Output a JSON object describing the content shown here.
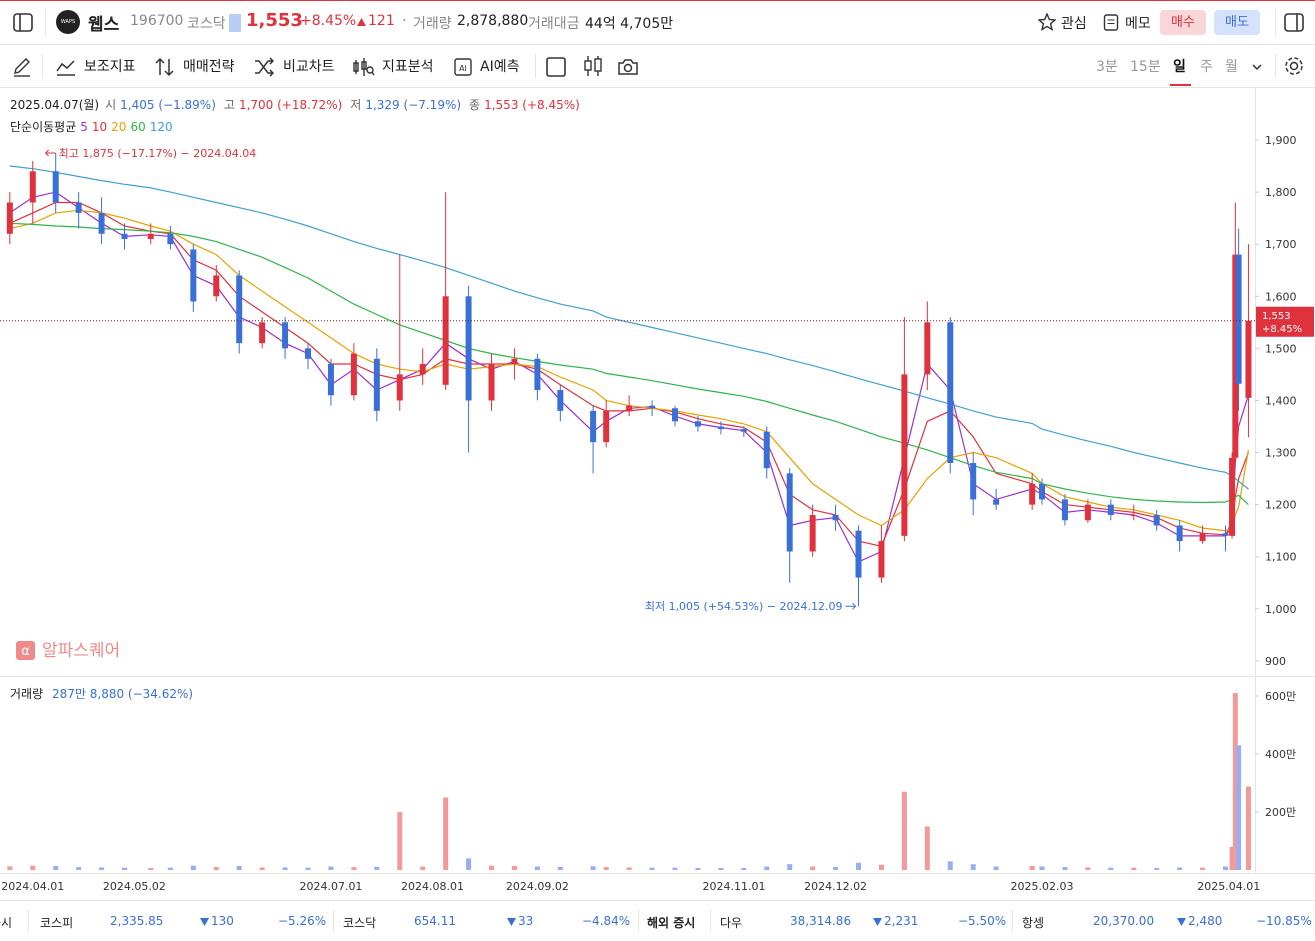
{
  "header": {
    "logo": "WAPS",
    "name": "웹스",
    "code": "196700",
    "market": "코스닥",
    "price": "1,553",
    "change": "+8.45%",
    "diff": "121",
    "volume_label": "거래량",
    "volume": "2,878,880",
    "amount_label": "거래대금",
    "amount": "44억 4,705만",
    "watch": "관심",
    "memo": "메모",
    "buy": "매수",
    "sell": "매도"
  },
  "toolbar": {
    "items": [
      "보조지표",
      "매매전략",
      "비교차트",
      "지표분석",
      "AI예측"
    ],
    "periods": [
      "3분",
      "15분",
      "일",
      "주",
      "월"
    ]
  },
  "info": {
    "date": "2025.04.07(월)",
    "open_label": "시",
    "open": "1,405 (−1.89%)",
    "high_label": "고",
    "high": "1,700 (+18.72%)",
    "low_label": "저",
    "low": "1,329 (−7.19%)",
    "close_label": "종",
    "close": "1,553 (+8.45%)",
    "ma_label": "단순이동평균"
  },
  "watermark": {
    "icon": "α",
    "text": "알파스퀘어"
  },
  "chart_data": [
    {
      "type": "candlestick",
      "x": [
        "2024.03.25",
        "2024.04.01",
        "2024.04.08",
        "2024.04.15",
        "2024.04.22",
        "2024.04.29",
        "2024.05.07",
        "2024.05.13",
        "2024.05.20",
        "2024.05.27",
        "2024.06.03",
        "2024.06.10",
        "2024.06.17",
        "2024.06.24",
        "2024.07.01",
        "2024.07.08",
        "2024.07.15",
        "2024.07.22",
        "2024.07.29",
        "2024.08.05",
        "2024.08.12",
        "2024.08.19",
        "2024.08.26",
        "2024.09.02",
        "2024.09.09",
        "2024.09.19",
        "2024.09.23",
        "2024.09.30",
        "2024.10.07",
        "2024.10.14",
        "2024.10.21",
        "2024.10.28",
        "2024.11.04",
        "2024.11.11",
        "2024.11.18",
        "2024.11.25",
        "2024.12.02",
        "2024.12.09",
        "2024.12.16",
        "2024.12.23",
        "2024.12.30",
        "2025.01.06",
        "2025.01.13",
        "2025.01.20",
        "2025.01.31",
        "2025.02.03",
        "2025.02.10",
        "2025.02.17",
        "2025.02.24",
        "2025.03.03",
        "2025.03.10",
        "2025.03.17",
        "2025.03.24",
        "2025.03.31",
        "2025.04.02",
        "2025.04.03",
        "2025.04.04",
        "2025.04.07"
      ],
      "open": [
        1720,
        1780,
        1840,
        1780,
        1760,
        1720,
        1710,
        1720,
        1690,
        1600,
        1640,
        1510,
        1550,
        1500,
        1470,
        1410,
        1480,
        1400,
        1450,
        1430,
        1600,
        1400,
        1470,
        1480,
        1420,
        1380,
        1320,
        1380,
        1390,
        1385,
        1360,
        1350,
        1345,
        1340,
        1260,
        1110,
        1180,
        1150,
        1060,
        1140,
        1450,
        1550,
        1280,
        1210,
        1200,
        1240,
        1210,
        1170,
        1200,
        1180,
        1180,
        1160,
        1130,
        1145,
        1140,
        1290,
        1680,
        1405
      ],
      "high": [
        1800,
        1860,
        1875,
        1800,
        1790,
        1740,
        1740,
        1735,
        1700,
        1660,
        1650,
        1560,
        1560,
        1510,
        1480,
        1510,
        1500,
        1680,
        1500,
        1800,
        1620,
        1490,
        1500,
        1490,
        1430,
        1390,
        1400,
        1410,
        1400,
        1390,
        1370,
        1360,
        1350,
        1350,
        1270,
        1200,
        1200,
        1160,
        1160,
        1560,
        1590,
        1560,
        1300,
        1230,
        1260,
        1250,
        1220,
        1210,
        1210,
        1200,
        1190,
        1170,
        1160,
        1160,
        1300,
        1780,
        1730,
        1700
      ],
      "low": [
        1700,
        1740,
        1760,
        1730,
        1700,
        1690,
        1700,
        1690,
        1570,
        1590,
        1490,
        1500,
        1480,
        1460,
        1390,
        1400,
        1360,
        1380,
        1430,
        1420,
        1300,
        1380,
        1440,
        1400,
        1360,
        1260,
        1310,
        1370,
        1370,
        1350,
        1340,
        1335,
        1330,
        1250,
        1050,
        1100,
        1150,
        1005,
        1050,
        1130,
        1420,
        1260,
        1180,
        1190,
        1190,
        1200,
        1160,
        1165,
        1170,
        1170,
        1150,
        1110,
        1125,
        1110,
        1135,
        1280,
        1380,
        1329
      ],
      "close": [
        1780,
        1840,
        1780,
        1760,
        1720,
        1710,
        1720,
        1700,
        1590,
        1640,
        1510,
        1550,
        1500,
        1480,
        1410,
        1490,
        1380,
        1450,
        1470,
        1600,
        1400,
        1470,
        1480,
        1420,
        1380,
        1320,
        1380,
        1390,
        1385,
        1360,
        1350,
        1345,
        1340,
        1270,
        1110,
        1180,
        1170,
        1060,
        1130,
        1450,
        1550,
        1280,
        1210,
        1200,
        1240,
        1210,
        1170,
        1200,
        1180,
        1180,
        1160,
        1130,
        1145,
        1140,
        1290,
        1680,
        1432,
        1553
      ],
      "up_color": "#e0323c",
      "down_color": "#3b6fd8",
      "series": [
        {
          "name": "5",
          "color": "#9b2fd3",
          "values": [
            1760,
            1790,
            1800,
            1770,
            1740,
            1715,
            1718,
            1715,
            1640,
            1620,
            1560,
            1540,
            1510,
            1490,
            1430,
            1460,
            1420,
            1440,
            1460,
            1510,
            1480,
            1460,
            1475,
            1450,
            1400,
            1340,
            1360,
            1385,
            1388,
            1370,
            1355,
            1348,
            1342,
            1300,
            1160,
            1170,
            1175,
            1090,
            1110,
            1290,
            1470,
            1420,
            1240,
            1210,
            1230,
            1220,
            1185,
            1190,
            1185,
            1180,
            1165,
            1140,
            1140,
            1140,
            1170,
            1280,
            1350,
            1410
          ]
        },
        {
          "name": "10",
          "color": "#e0323c",
          "values": [
            1740,
            1760,
            1780,
            1780,
            1760,
            1735,
            1725,
            1720,
            1670,
            1650,
            1600,
            1570,
            1540,
            1510,
            1470,
            1470,
            1450,
            1440,
            1450,
            1480,
            1470,
            1470,
            1470,
            1460,
            1430,
            1390,
            1380,
            1380,
            1385,
            1378,
            1365,
            1355,
            1348,
            1320,
            1220,
            1190,
            1180,
            1130,
            1120,
            1230,
            1360,
            1380,
            1330,
            1260,
            1240,
            1225,
            1200,
            1195,
            1190,
            1185,
            1175,
            1155,
            1145,
            1142,
            1155,
            1215,
            1250,
            1300
          ]
        },
        {
          "name": "20",
          "color": "#e8a200",
          "values": [
            1730,
            1740,
            1760,
            1765,
            1760,
            1750,
            1735,
            1725,
            1700,
            1680,
            1640,
            1610,
            1580,
            1550,
            1520,
            1490,
            1470,
            1460,
            1455,
            1470,
            1460,
            1465,
            1470,
            1465,
            1445,
            1420,
            1400,
            1390,
            1385,
            1380,
            1372,
            1365,
            1355,
            1340,
            1290,
            1240,
            1210,
            1180,
            1160,
            1190,
            1250,
            1290,
            1300,
            1290,
            1260,
            1240,
            1215,
            1205,
            1195,
            1190,
            1180,
            1170,
            1155,
            1150,
            1155,
            1180,
            1195,
            1305
          ]
        },
        {
          "name": "60",
          "color": "#2fb44a",
          "values": [
            1740,
            1738,
            1735,
            1733,
            1730,
            1728,
            1725,
            1722,
            1715,
            1705,
            1690,
            1675,
            1655,
            1635,
            1610,
            1585,
            1565,
            1545,
            1530,
            1515,
            1500,
            1490,
            1482,
            1475,
            1468,
            1460,
            1452,
            1445,
            1438,
            1430,
            1422,
            1415,
            1408,
            1398,
            1385,
            1372,
            1360,
            1345,
            1330,
            1318,
            1305,
            1290,
            1275,
            1262,
            1250,
            1240,
            1230,
            1222,
            1215,
            1210,
            1207,
            1205,
            1204,
            1205,
            1210,
            1215,
            1218,
            1200
          ]
        },
        {
          "name": "120",
          "color": "#3fa0d0",
          "values": [
            1850,
            1845,
            1838,
            1830,
            1822,
            1815,
            1808,
            1800,
            1790,
            1780,
            1770,
            1760,
            1748,
            1735,
            1720,
            1705,
            1692,
            1680,
            1668,
            1655,
            1640,
            1625,
            1610,
            1597,
            1585,
            1572,
            1560,
            1550,
            1540,
            1530,
            1520,
            1510,
            1500,
            1490,
            1478,
            1467,
            1455,
            1442,
            1430,
            1418,
            1405,
            1393,
            1380,
            1368,
            1356,
            1345,
            1333,
            1322,
            1312,
            1300,
            1290,
            1280,
            1270,
            1262,
            1255,
            1250,
            1245,
            1230
          ]
        }
      ],
      "xlim": [
        "2024.03.22",
        "2025.04.09"
      ],
      "ylim": [
        871,
        1996
      ],
      "yticks": [
        900,
        {
          "value": 1000,
          "label": "1,000"
        },
        {
          "value": 1100,
          "label": "1,100"
        },
        {
          "value": 1200,
          "label": "1,200"
        },
        {
          "value": 1300,
          "label": "1,300"
        },
        {
          "value": 1400,
          "label": "1,400"
        },
        {
          "value": 1500,
          "label": "1,500"
        },
        {
          "value": 1600,
          "label": "1,600"
        },
        {
          "value": 1700,
          "label": "1,700"
        },
        {
          "value": 1800,
          "label": "1,800"
        },
        {
          "value": 1900,
          "label": "1,900"
        }
      ],
      "last_price": {
        "value": 1553,
        "label": "1,553",
        "change": "+8.45%",
        "color": "#e0323c"
      },
      "high_mark": {
        "value": 1875,
        "x": "2024.04.04",
        "label": "최고 1,875 (−17.17%) − 2024.04.04",
        "color": "#e0323c"
      },
      "low_mark": {
        "value": 1005,
        "x": "2024.12.09",
        "label": "최저 1,005 (+54.53%) − 2024.12.09",
        "color": "#3b6fd8"
      },
      "grid": false
    },
    {
      "type": "bar",
      "title": "거래량",
      "subtitle": "287만 8,880 (−34.62%)",
      "x": [
        "2024.03.25",
        "2024.04.01",
        "2024.04.08",
        "2024.04.15",
        "2024.04.22",
        "2024.04.29",
        "2024.05.07",
        "2024.05.13",
        "2024.05.20",
        "2024.05.27",
        "2024.06.03",
        "2024.06.10",
        "2024.06.17",
        "2024.06.24",
        "2024.07.01",
        "2024.07.08",
        "2024.07.15",
        "2024.07.22",
        "2024.07.29",
        "2024.08.05",
        "2024.08.12",
        "2024.08.19",
        "2024.08.26",
        "2024.09.02",
        "2024.09.09",
        "2024.09.19",
        "2024.09.23",
        "2024.09.30",
        "2024.10.07",
        "2024.10.14",
        "2024.10.21",
        "2024.10.28",
        "2024.11.04",
        "2024.11.11",
        "2024.11.18",
        "2024.11.25",
        "2024.12.02",
        "2024.12.09",
        "2024.12.16",
        "2024.12.23",
        "2024.12.30",
        "2025.01.06",
        "2025.01.13",
        "2025.01.20",
        "2025.01.31",
        "2025.02.03",
        "2025.02.10",
        "2025.02.17",
        "2025.02.24",
        "2025.03.03",
        "2025.03.10",
        "2025.03.17",
        "2025.03.24",
        "2025.03.31",
        "2025.04.02",
        "2025.04.03",
        "2025.04.04",
        "2025.04.07"
      ],
      "values": [
        12,
        15,
        14,
        10,
        9,
        8,
        7,
        8,
        15,
        10,
        14,
        9,
        9,
        8,
        12,
        10,
        11,
        200,
        12,
        250,
        40,
        15,
        14,
        12,
        11,
        13,
        10,
        9,
        8,
        8,
        7,
        7,
        7,
        12,
        20,
        12,
        10,
        25,
        18,
        270,
        150,
        30,
        20,
        12,
        14,
        12,
        10,
        9,
        8,
        8,
        7,
        9,
        8,
        12,
        80,
        610,
        430,
        287.888
      ],
      "up_color": "#f29a9a",
      "down_color": "#98aef0",
      "xlim": [
        "2024.03.22",
        "2025.04.09"
      ],
      "ylim": [
        0,
        669
      ],
      "yticks": [
        {
          "value": 200,
          "label": "200만"
        },
        {
          "value": 400,
          "label": "400만"
        },
        {
          "value": 600,
          "label": "600만"
        }
      ],
      "xticks": [
        "2024.04.01",
        "2024.05.02",
        "2024.07.01",
        "2024.08.01",
        "2024.09.02",
        "2024.11.01",
        "2024.12.02",
        "2025.02.03",
        "2025.04.01"
      ]
    }
  ],
  "ticker": {
    "cut": "증시",
    "overseas": "해외 증시",
    "items": [
      {
        "name": "코스피",
        "value": "2,335.85",
        "change": "130",
        "rate": "−5.26%"
      },
      {
        "name": "코스닥",
        "value": "654.11",
        "change": "33",
        "rate": "−4.84%"
      },
      {
        "name": "다우",
        "value": "38,314.86",
        "change": "2,231",
        "rate": "−5.50%"
      },
      {
        "name": "항셍",
        "value": "20,370.00",
        "change": "2,480",
        "rate": "−10.85%"
      }
    ]
  }
}
